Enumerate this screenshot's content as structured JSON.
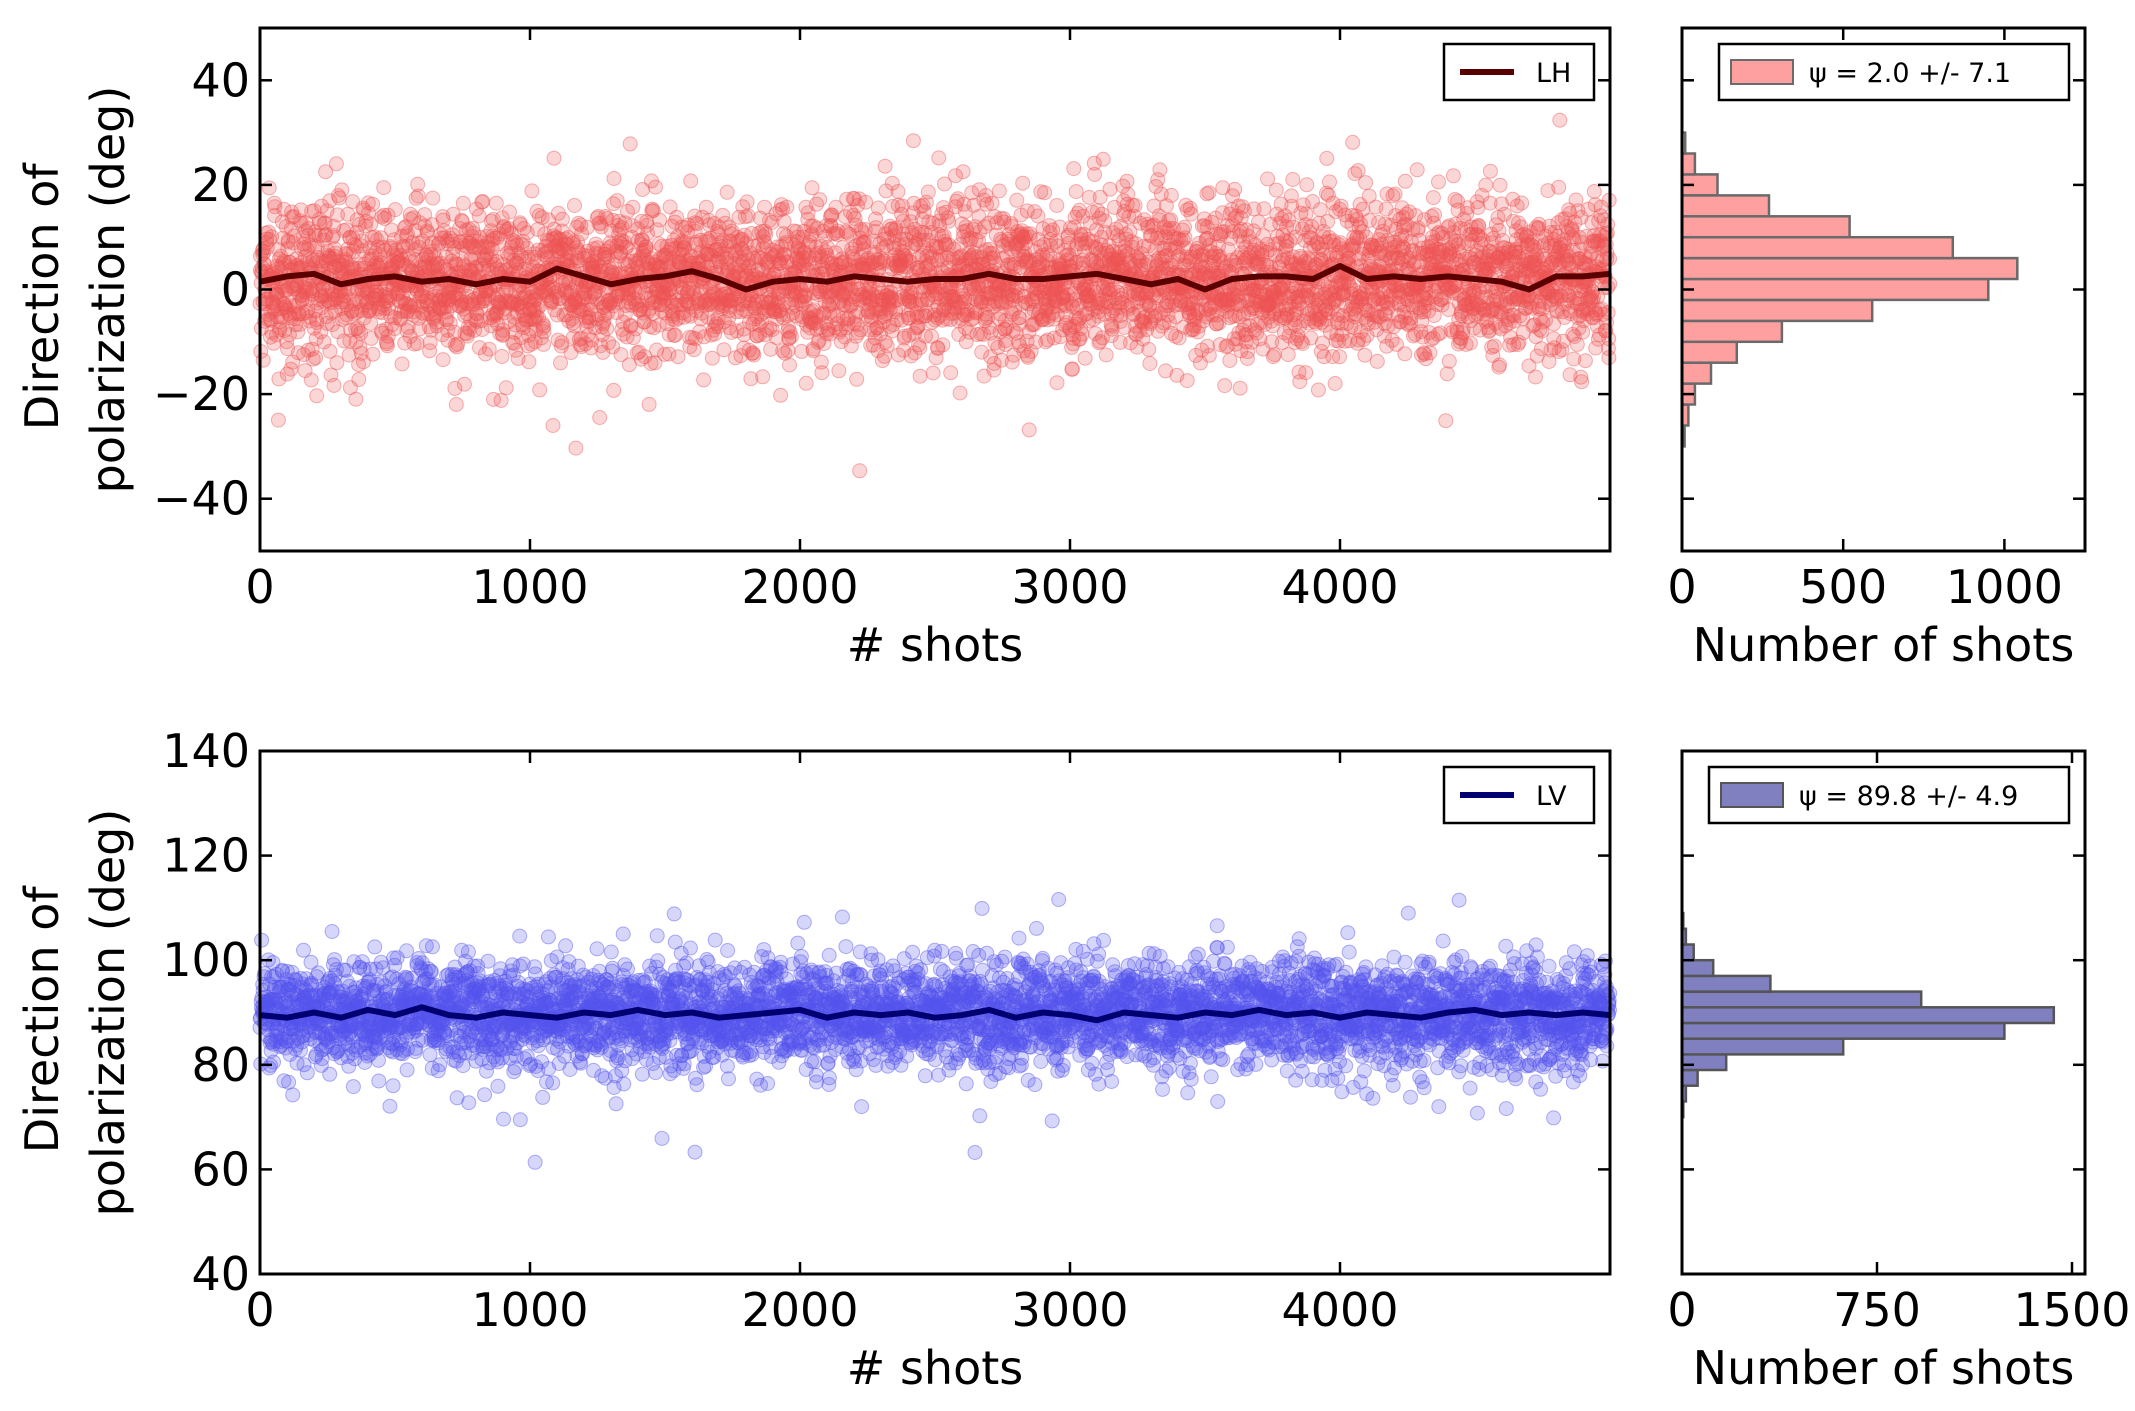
{
  "chart_data": [
    {
      "type": "scatter",
      "panel": "top-left",
      "series_name": "LH",
      "xlabel": "# shots",
      "ylabel": "Direction of polarization (deg)",
      "ylabel_lines": [
        "Direction of",
        "polarization (deg)"
      ],
      "xlim": [
        0,
        5000
      ],
      "ylim": [
        -50,
        50
      ],
      "xticks": [
        0,
        1000,
        2000,
        3000,
        4000
      ],
      "xtick_labels": [
        "0",
        "1000",
        "2000",
        "3000",
        "4000"
      ],
      "yticks": [
        -40,
        -20,
        0,
        20,
        40
      ],
      "ytick_labels": [
        "−40",
        "−20",
        "0",
        "20",
        "40"
      ],
      "n_points": 5000,
      "mean": 2.0,
      "spread": 7.1,
      "legend": {
        "label": "LH",
        "position": "top-right"
      },
      "point_color": "#ee5555",
      "line_color": "#5a0000",
      "line": {
        "x": [
          0,
          100,
          200,
          300,
          400,
          500,
          600,
          700,
          800,
          900,
          1000,
          1100,
          1200,
          1300,
          1400,
          1500,
          1600,
          1700,
          1800,
          1900,
          2000,
          2100,
          2200,
          2300,
          2400,
          2500,
          2600,
          2700,
          2800,
          2900,
          3000,
          3100,
          3200,
          3300,
          3400,
          3500,
          3600,
          3700,
          3800,
          3900,
          4000,
          4100,
          4200,
          4300,
          4400,
          4500,
          4600,
          4700,
          4800,
          4900,
          5000
        ],
        "y": [
          1.5,
          2.5,
          3.0,
          1.0,
          2.0,
          2.5,
          1.5,
          2.0,
          1.0,
          2.0,
          1.5,
          4.0,
          2.5,
          1.0,
          2.0,
          2.5,
          3.5,
          2.0,
          0.0,
          1.5,
          2.0,
          1.5,
          2.5,
          2.0,
          1.5,
          2.0,
          2.0,
          3.0,
          2.0,
          2.0,
          2.5,
          3.0,
          2.0,
          1.0,
          2.0,
          0.0,
          2.0,
          2.5,
          2.5,
          2.0,
          4.5,
          2.0,
          2.5,
          2.0,
          2.5,
          2.0,
          1.5,
          0.0,
          2.5,
          2.5,
          3.0
        ]
      }
    },
    {
      "type": "bar",
      "orientation": "horizontal",
      "panel": "top-right",
      "xlabel": "Number of shots",
      "xlim": [
        0,
        1250
      ],
      "ylim": [
        -50,
        50
      ],
      "xticks": [
        0,
        500,
        1000
      ],
      "xtick_labels": [
        "0",
        "500",
        "1000"
      ],
      "bin_edges": [
        -30,
        -26,
        -22,
        -18,
        -14,
        -10,
        -6,
        -2,
        2,
        6,
        10,
        14,
        18,
        22,
        26,
        30
      ],
      "counts": [
        8,
        20,
        40,
        90,
        170,
        310,
        590,
        950,
        1040,
        840,
        520,
        270,
        110,
        40,
        10
      ],
      "legend": {
        "label": "ψ = 2.0 +/- 7.1",
        "position": "top-right"
      },
      "bar_color": "#ffa0a0",
      "edge_color": "#6a6a6a"
    },
    {
      "type": "scatter",
      "panel": "bottom-left",
      "series_name": "LV",
      "xlabel": "# shots",
      "ylabel": "Direction of polarization (deg)",
      "ylabel_lines": [
        "Direction of",
        "polarization (deg)"
      ],
      "xlim": [
        0,
        5000
      ],
      "ylim": [
        40,
        140
      ],
      "xticks": [
        0,
        1000,
        2000,
        3000,
        4000
      ],
      "xtick_labels": [
        "0",
        "1000",
        "2000",
        "3000",
        "4000"
      ],
      "yticks": [
        40,
        60,
        80,
        100,
        120,
        140
      ],
      "ytick_labels": [
        "40",
        "60",
        "80",
        "100",
        "120",
        "140"
      ],
      "n_points": 5000,
      "mean": 89.8,
      "spread": 4.9,
      "legend": {
        "label": "LV",
        "position": "top-right"
      },
      "point_color": "#5555ee",
      "line_color": "#000070",
      "line": {
        "x": [
          0,
          100,
          200,
          300,
          400,
          500,
          600,
          700,
          800,
          900,
          1000,
          1100,
          1200,
          1300,
          1400,
          1500,
          1600,
          1700,
          1800,
          1900,
          2000,
          2100,
          2200,
          2300,
          2400,
          2500,
          2600,
          2700,
          2800,
          2900,
          3000,
          3100,
          3200,
          3300,
          3400,
          3500,
          3600,
          3700,
          3800,
          3900,
          4000,
          4100,
          4200,
          4300,
          4400,
          4500,
          4600,
          4700,
          4800,
          4900,
          5000
        ],
        "y": [
          89.5,
          89.0,
          90.0,
          89.0,
          90.5,
          89.5,
          91.0,
          89.5,
          89.0,
          90.0,
          89.5,
          89.0,
          90.0,
          89.5,
          90.5,
          89.5,
          90.0,
          89.0,
          89.5,
          90.0,
          90.5,
          89.0,
          90.0,
          89.5,
          90.0,
          89.0,
          89.5,
          90.5,
          89.0,
          90.0,
          89.5,
          88.5,
          90.0,
          89.5,
          89.0,
          90.0,
          89.5,
          90.5,
          89.5,
          90.0,
          89.0,
          90.0,
          89.5,
          89.0,
          90.0,
          90.5,
          89.5,
          90.0,
          89.5,
          90.0,
          89.5
        ]
      }
    },
    {
      "type": "bar",
      "orientation": "horizontal",
      "panel": "bottom-right",
      "xlabel": "Number of shots",
      "xlim": [
        0,
        1550
      ],
      "ylim": [
        40,
        140
      ],
      "xticks": [
        0,
        750,
        1500
      ],
      "xtick_labels": [
        "0",
        "750",
        "1500"
      ],
      "bin_edges": [
        70,
        73,
        76,
        79,
        82,
        85,
        88,
        91,
        94,
        97,
        100,
        103,
        106,
        109
      ],
      "counts": [
        5,
        15,
        60,
        170,
        620,
        1240,
        1430,
        920,
        340,
        120,
        45,
        15,
        5
      ],
      "legend": {
        "label": "ψ = 89.8 +/- 4.9",
        "position": "top-right"
      },
      "bar_color": "#8080c0",
      "edge_color": "#555555"
    }
  ]
}
